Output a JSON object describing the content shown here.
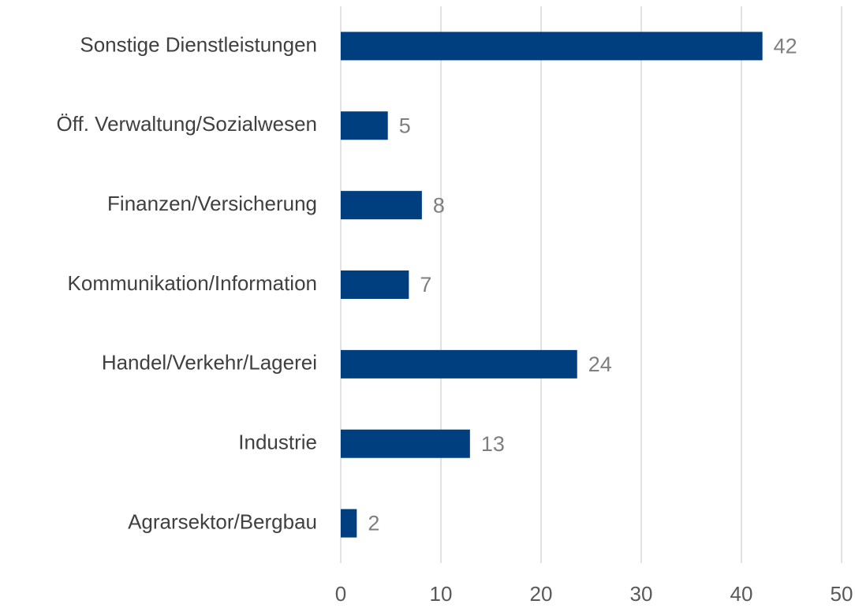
{
  "chart_data": {
    "type": "barh",
    "categories": [
      "Sonstige Dienstleistungen",
      "Öff. Verwaltung/Sozialwesen",
      "Finanzen/Versicherung",
      "Kommunikation/Information",
      "Handel/Verkehr/Lagerei",
      "Industrie",
      "Agrarsektor/Bergbau"
    ],
    "values": [
      42.1,
      4.7,
      8.1,
      6.8,
      23.6,
      12.9,
      1.6
    ],
    "value_labels": [
      "42",
      "5",
      "8",
      "7",
      "24",
      "13",
      "2"
    ],
    "color": "#003f7f",
    "xlim": [
      0,
      50
    ],
    "xticks": [
      0,
      10,
      20,
      30,
      40,
      50
    ],
    "grid": true
  }
}
